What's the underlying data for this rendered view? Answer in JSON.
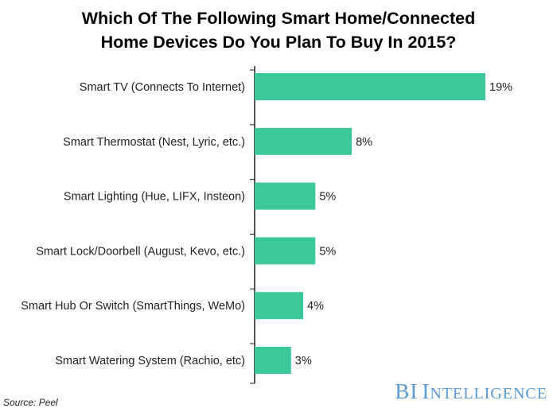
{
  "chart_data": {
    "type": "bar",
    "orientation": "horizontal",
    "title_lines": [
      "Which Of The Following Smart Home/Connected",
      "Home Devices Do You Plan To Buy In 2015?"
    ],
    "categories": [
      "Smart TV (Connects To Internet)",
      "Smart Thermostat (Nest, Lyric, etc.)",
      "Smart Lighting (Hue, LIFX, Insteon)",
      "Smart Lock/Doorbell (August, Kevo, etc.)",
      "Smart Hub Or Switch (SmartThings, WeMo)",
      "Smart Watering System (Rachio, etc)"
    ],
    "values": [
      19,
      8,
      5,
      5,
      4,
      3
    ],
    "value_labels": [
      "19%",
      "8%",
      "5%",
      "5%",
      "4%",
      "3%"
    ],
    "unit": "%",
    "xlim": [
      0,
      19
    ],
    "bar_color": "#3cc89b",
    "axis_color": "#222222",
    "grid": false,
    "legend": "none"
  },
  "footer": {
    "source": "Source: Peel",
    "brand_bi": "BI",
    "brand_i": "I",
    "brand_rest": "NTELLIGENCE",
    "brand_color": "#5b9bd5"
  }
}
